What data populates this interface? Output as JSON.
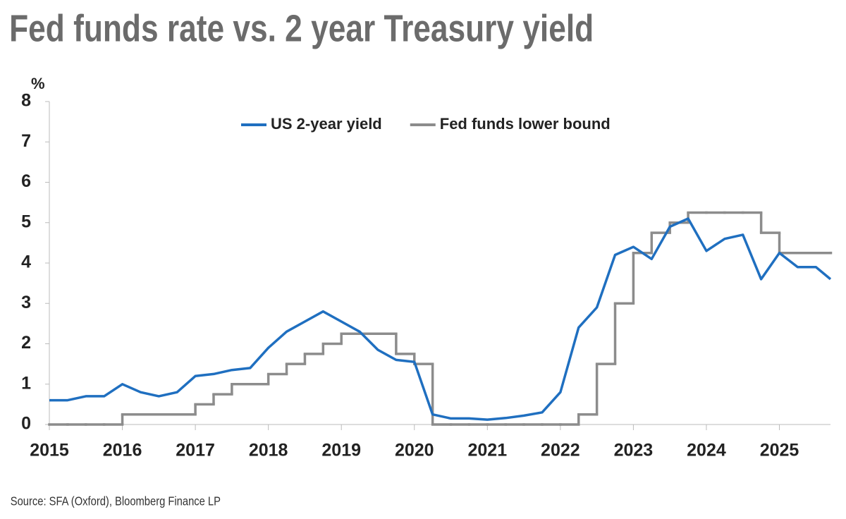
{
  "chart_data": {
    "type": "line",
    "title": "Fed funds rate vs. 2 year Treasury yield",
    "y_label": "%",
    "source": "Source: SFA (Oxford), Bloomberg Finance LP",
    "x": [
      2015,
      2015.25,
      2015.5,
      2015.75,
      2016,
      2016.25,
      2016.5,
      2016.75,
      2017,
      2017.25,
      2017.5,
      2017.75,
      2018,
      2018.25,
      2018.5,
      2018.75,
      2019,
      2019.25,
      2019.5,
      2019.75,
      2020,
      2020.25,
      2020.5,
      2020.75,
      2021,
      2021.25,
      2021.5,
      2021.75,
      2022,
      2022.25,
      2022.5,
      2022.75,
      2023,
      2023.25,
      2023.5,
      2023.75,
      2024,
      2024.25,
      2024.5,
      2024.75,
      2025,
      2025.25,
      2025.5,
      2025.7
    ],
    "series": [
      {
        "name": "US 2-year yield",
        "color": "#1f6fc0",
        "values": [
          0.6,
          0.6,
          0.7,
          0.7,
          1.0,
          0.8,
          0.7,
          0.8,
          1.2,
          1.25,
          1.35,
          1.4,
          1.9,
          2.3,
          2.55,
          2.8,
          2.55,
          2.3,
          1.85,
          1.6,
          1.55,
          0.25,
          0.15,
          0.15,
          0.12,
          0.16,
          0.22,
          0.3,
          0.8,
          2.4,
          2.9,
          4.2,
          4.4,
          4.1,
          4.9,
          5.1,
          4.3,
          4.6,
          4.7,
          3.6,
          4.25,
          3.9,
          3.9,
          3.6
        ]
      },
      {
        "name": "Fed funds lower bound",
        "color": "#8c8c8c",
        "step": true,
        "values": [
          0,
          0,
          0,
          0,
          0.25,
          0.25,
          0.25,
          0.25,
          0.5,
          0.75,
          1.0,
          1.0,
          1.25,
          1.5,
          1.75,
          2.0,
          2.25,
          2.25,
          2.25,
          1.75,
          1.5,
          0,
          0,
          0,
          0,
          0,
          0,
          0,
          0,
          0.25,
          1.5,
          3.0,
          4.25,
          4.75,
          5.0,
          5.25,
          5.25,
          5.25,
          5.25,
          4.75,
          4.25,
          4.25,
          4.25,
          4.25
        ]
      }
    ],
    "xlim": [
      2015,
      2025.7
    ],
    "xticks": [
      2015,
      2016,
      2017,
      2018,
      2019,
      2020,
      2021,
      2022,
      2023,
      2024,
      2025
    ],
    "ylim": [
      0,
      8
    ],
    "yticks": [
      0,
      1,
      2,
      3,
      4,
      5,
      6,
      7,
      8
    ],
    "grid": false,
    "legend": "top"
  }
}
